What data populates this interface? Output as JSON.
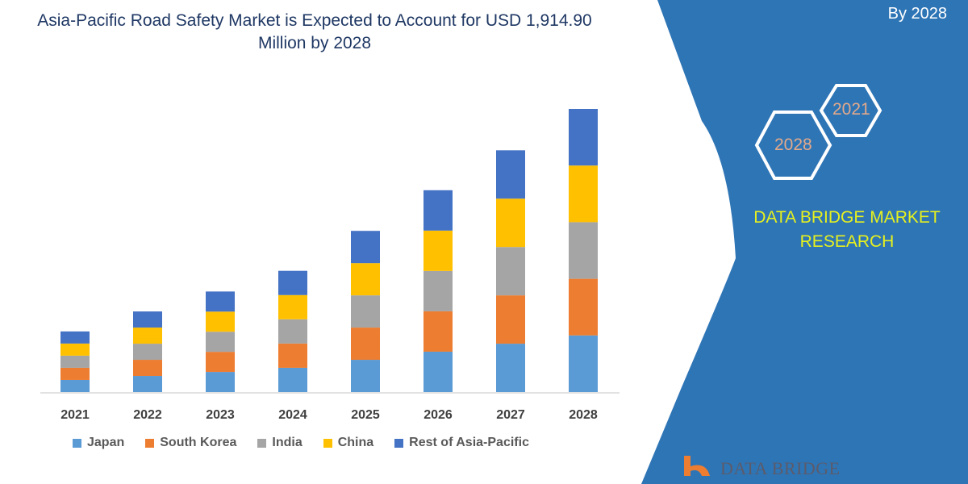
{
  "title": "Asia-Pacific Road Safety Market is Expected to Account for USD 1,914.90 Million by 2028",
  "side_panel": {
    "top_text": "By 2028",
    "hex_years": [
      "2021",
      "2028"
    ],
    "brand": "DATA BRIDGE MARKET RESEARCH",
    "logo_text": "DATA BRIDGE",
    "panel_color": "#2e75b6"
  },
  "chart_data": {
    "type": "bar",
    "stacked": true,
    "title": "Asia-Pacific Road Safety Market is Expected to Account for USD 1,914.90 Million by 2028",
    "categories": [
      "2021",
      "2022",
      "2023",
      "2024",
      "2025",
      "2026",
      "2027",
      "2028"
    ],
    "series": [
      {
        "name": "Japan",
        "color": "#5b9bd5",
        "values": [
          82,
          109,
          136,
          164,
          218,
          273,
          327,
          383
        ]
      },
      {
        "name": "South Korea",
        "color": "#ed7d31",
        "values": [
          82,
          109,
          136,
          164,
          218,
          273,
          327,
          383
        ]
      },
      {
        "name": "India",
        "color": "#a5a5a5",
        "values": [
          82,
          109,
          136,
          164,
          218,
          273,
          327,
          383
        ]
      },
      {
        "name": "China",
        "color": "#ffc000",
        "values": [
          82,
          109,
          136,
          164,
          218,
          273,
          327,
          383
        ]
      },
      {
        "name": "Rest of Asia-Pacific",
        "color": "#4472c4",
        "values": [
          82,
          109,
          136,
          164,
          218,
          273,
          327,
          383
        ]
      }
    ],
    "ylim": [
      0,
      1915
    ],
    "grid": false,
    "y_axis_shown": false,
    "legend": "bottom"
  }
}
